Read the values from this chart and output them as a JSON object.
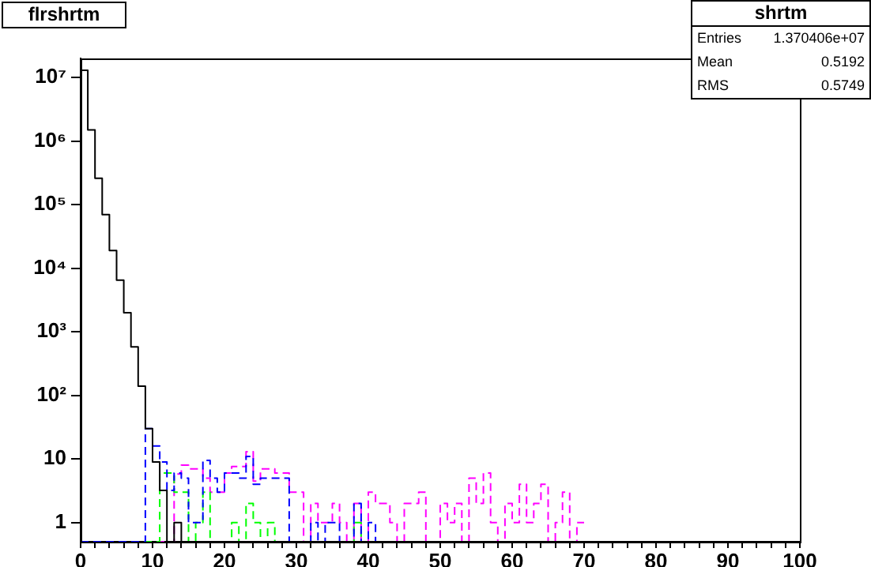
{
  "chart_data": {
    "type": "histogram",
    "title": "flrshrtm",
    "log": "y",
    "xlim": [
      0,
      100
    ],
    "ylim": [
      0.5,
      20000000
    ],
    "xticks": [
      0,
      {
        "value": 2,
        "label": null
      },
      {
        "value": 4,
        "label": null
      },
      {
        "value": 6,
        "label": null
      },
      {
        "value": 8,
        "label": null
      },
      10,
      {
        "value": 12,
        "label": null
      },
      {
        "value": 14,
        "label": null
      },
      {
        "value": 16,
        "label": null
      },
      {
        "value": 18,
        "label": null
      },
      20,
      {
        "value": 22,
        "label": null
      },
      {
        "value": 24,
        "label": null
      },
      {
        "value": 26,
        "label": null
      },
      {
        "value": 28,
        "label": null
      },
      30,
      {
        "value": 32,
        "label": null
      },
      {
        "value": 34,
        "label": null
      },
      {
        "value": 36,
        "label": null
      },
      {
        "value": 38,
        "label": null
      },
      40,
      {
        "value": 42,
        "label": null
      },
      {
        "value": 44,
        "label": null
      },
      {
        "value": 46,
        "label": null
      },
      {
        "value": 48,
        "label": null
      },
      50,
      {
        "value": 52,
        "label": null
      },
      {
        "value": 54,
        "label": null
      },
      {
        "value": 56,
        "label": null
      },
      {
        "value": 58,
        "label": null
      },
      60,
      {
        "value": 62,
        "label": null
      },
      {
        "value": 64,
        "label": null
      },
      {
        "value": 66,
        "label": null
      },
      {
        "value": 68,
        "label": null
      },
      70,
      {
        "value": 72,
        "label": null
      },
      {
        "value": 74,
        "label": null
      },
      {
        "value": 76,
        "label": null
      },
      {
        "value": 78,
        "label": null
      },
      80,
      {
        "value": 82,
        "label": null
      },
      {
        "value": 84,
        "label": null
      },
      {
        "value": 86,
        "label": null
      },
      {
        "value": 88,
        "label": null
      },
      90,
      {
        "value": 92,
        "label": null
      },
      {
        "value": 94,
        "label": null
      },
      {
        "value": 96,
        "label": null
      },
      {
        "value": 98,
        "label": null
      },
      100
    ],
    "yticks": [
      1,
      10,
      {
        "value": 100,
        "label": "10²"
      },
      {
        "value": 1000,
        "label": "10³"
      },
      {
        "value": 10000,
        "label": "10⁴"
      },
      {
        "value": 100000,
        "label": "10⁵"
      },
      {
        "value": 1000000,
        "label": "10⁶"
      },
      {
        "value": 10000000,
        "label": "10⁷"
      }
    ],
    "bins": [
      0,
      1,
      2,
      3,
      4,
      5,
      6,
      7,
      8,
      9,
      10,
      11,
      12,
      13,
      14,
      15,
      16,
      17,
      18,
      19,
      20,
      21,
      22,
      23,
      24,
      25,
      26,
      27,
      28,
      29,
      30,
      31,
      32,
      33,
      34,
      35,
      36,
      37,
      38,
      39,
      40,
      41,
      42,
      43,
      44,
      45,
      46,
      47,
      48,
      49,
      50,
      51,
      52,
      53,
      54,
      55,
      56,
      57,
      58,
      59,
      60,
      61,
      62,
      63,
      64,
      65,
      66,
      67,
      68,
      69,
      70
    ],
    "series": [
      {
        "color": "#000000",
        "line_style": "solid",
        "values": [
          13000000,
          1500000,
          260000,
          70000,
          19000,
          6500,
          2000,
          580,
          140,
          30,
          9,
          3.2,
          null,
          1,
          null,
          null,
          null,
          null,
          null,
          null,
          null,
          null,
          null,
          null,
          null,
          null,
          null,
          null,
          null,
          null,
          null,
          null,
          null,
          null,
          null,
          null,
          null,
          null,
          null,
          null,
          null,
          null,
          null,
          null,
          null,
          null,
          null,
          null,
          null,
          null,
          null,
          null,
          null,
          null,
          null,
          null,
          null,
          null,
          null,
          null,
          null,
          null,
          null,
          null,
          null,
          null,
          null,
          null,
          null,
          null
        ]
      },
      {
        "color": "#0000ff",
        "line_style": "dashed",
        "values": [
          null,
          null,
          null,
          null,
          null,
          null,
          null,
          null,
          null,
          30,
          16,
          9,
          3.2,
          6,
          5,
          1,
          1,
          9.5,
          5,
          3,
          6,
          6,
          5,
          11,
          4,
          5,
          5,
          5,
          5,
          null,
          null,
          null,
          1,
          null,
          1,
          1,
          null,
          null,
          2,
          null,
          1,
          null,
          null,
          null,
          null,
          null,
          null,
          null,
          null,
          null,
          null,
          null,
          null,
          null,
          null,
          null,
          null,
          null,
          null,
          null,
          null,
          null,
          null,
          null,
          null,
          null,
          null,
          null,
          null,
          null
        ]
      },
      {
        "color": "#00ff00",
        "line_style": "dashed",
        "values": [
          null,
          null,
          null,
          null,
          null,
          null,
          null,
          null,
          null,
          null,
          null,
          6,
          6,
          3,
          3,
          null,
          1,
          3,
          null,
          null,
          null,
          1,
          null,
          2,
          1,
          null,
          1,
          null,
          null,
          null,
          null,
          null,
          null,
          null,
          null,
          null,
          null,
          null,
          1,
          null,
          null,
          null,
          null,
          null,
          null,
          null,
          null,
          null,
          null,
          null,
          null,
          null,
          null,
          null,
          null,
          null,
          null,
          null,
          null,
          null,
          null,
          null,
          null,
          null,
          null,
          null,
          null,
          null,
          null,
          null
        ]
      },
      {
        "color": "#ff00ff",
        "line_style": "dashed",
        "values": [
          null,
          null,
          null,
          null,
          null,
          null,
          null,
          null,
          null,
          null,
          null,
          null,
          null,
          5.8,
          8,
          7,
          7,
          5,
          3,
          3,
          6,
          7.6,
          7.6,
          13,
          4.5,
          7,
          7,
          6,
          6,
          3,
          3,
          null,
          2,
          1,
          1,
          2,
          1,
          null,
          2,
          null,
          3,
          2,
          2,
          1,
          null,
          2,
          2,
          3,
          null,
          null,
          2,
          1,
          2,
          null,
          5,
          2,
          6,
          1,
          null,
          2,
          1,
          4,
          1,
          2,
          4,
          null,
          1,
          3,
          null,
          1
        ]
      }
    ],
    "annotations": [
      "shrtm",
      "Entries",
      "1.370406e+07",
      "Mean",
      "0.5192",
      "RMS",
      "0.5749"
    ]
  }
}
